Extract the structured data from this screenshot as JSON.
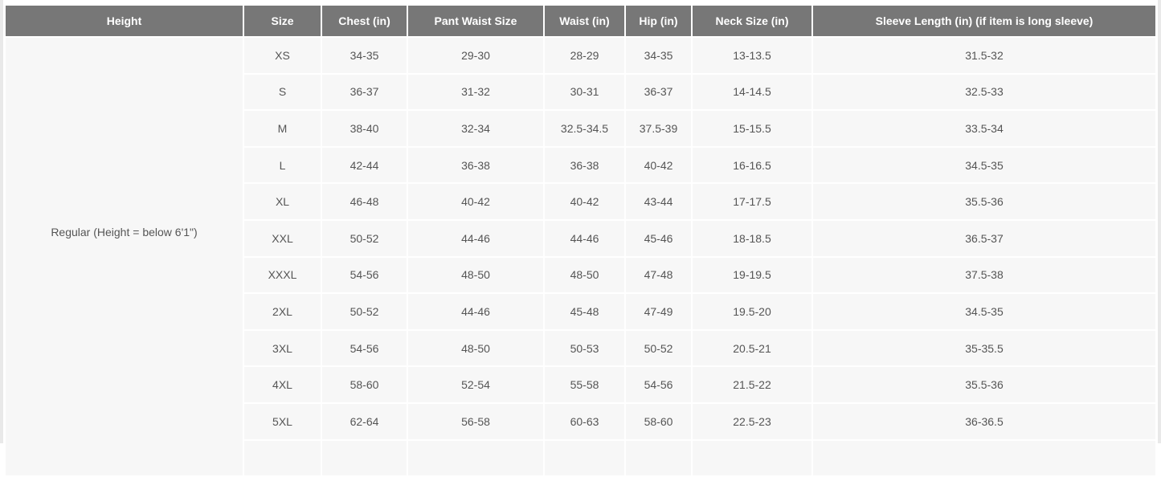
{
  "table": {
    "headers": [
      "Height",
      "Size",
      "Chest (in)",
      "Pant Waist Size",
      "Waist (in)",
      "Hip (in)",
      "Neck Size (in)",
      "Sleeve Length (in) (if item is long sleeve)"
    ],
    "height_group": "Regular (Height = below 6'1\")",
    "rows": [
      [
        "XS",
        "34-35",
        "29-30",
        "28-29",
        "34-35",
        "13-13.5",
        "31.5-32"
      ],
      [
        "S",
        "36-37",
        "31-32",
        "30-31",
        "36-37",
        "14-14.5",
        "32.5-33"
      ],
      [
        "M",
        "38-40",
        "32-34",
        "32.5-34.5",
        "37.5-39",
        "15-15.5",
        "33.5-34"
      ],
      [
        "L",
        "42-44",
        "36-38",
        "36-38",
        "40-42",
        "16-16.5",
        "34.5-35"
      ],
      [
        "XL",
        "46-48",
        "40-42",
        "40-42",
        "43-44",
        "17-17.5",
        "35.5-36"
      ],
      [
        "XXL",
        "50-52",
        "44-46",
        "44-46",
        "45-46",
        "18-18.5",
        "36.5-37"
      ],
      [
        "XXXL",
        "54-56",
        "48-50",
        "48-50",
        "47-48",
        "19-19.5",
        "37.5-38"
      ],
      [
        "2XL",
        "50-52",
        "44-46",
        "45-48",
        "47-49",
        "19.5-20",
        "34.5-35"
      ],
      [
        "3XL",
        "54-56",
        "48-50",
        "50-53",
        "50-52",
        "20.5-21",
        "35-35.5"
      ],
      [
        "4XL",
        "58-60",
        "52-54",
        "55-58",
        "54-56",
        "21.5-22",
        "35.5-36"
      ],
      [
        "5XL",
        "62-64",
        "56-58",
        "60-63",
        "58-60",
        "22.5-23",
        "36-36.5"
      ]
    ]
  },
  "colors": {
    "header_bg": "#777777",
    "cell_bg": "#f7f7f7",
    "text": "#555555"
  }
}
